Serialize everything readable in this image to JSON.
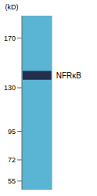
{
  "chart_data": {
    "type": "gel",
    "color": "#5ab4d4",
    "ylim": [
      48,
      188
    ],
    "yticks": [
      170,
      130,
      95,
      72,
      55
    ],
    "y_label": "(kD)",
    "tick_labels": "y",
    "bands": [
      {
        "label": "NFRκB",
        "value": 140,
        "half_width": 3.5,
        "color": "#1c1c3a"
      }
    ]
  }
}
